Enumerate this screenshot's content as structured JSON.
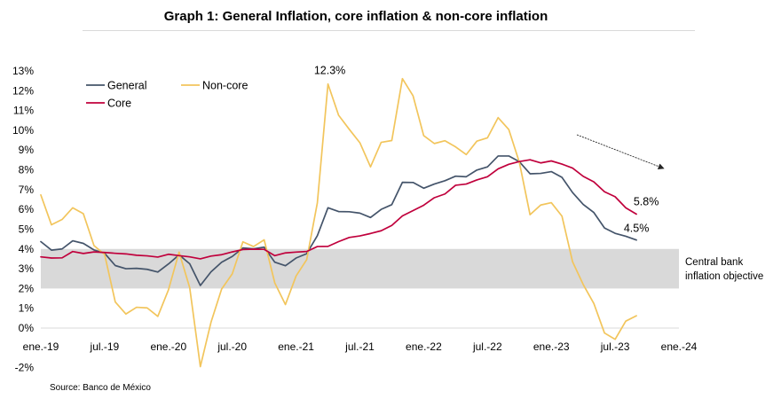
{
  "chart_data": {
    "type": "line",
    "title": "Graph 1: General Inflation, core inflation & non-core inflation",
    "source": "Source: Banco de México",
    "xlabel": "",
    "ylabel": "",
    "grid": false,
    "legend": "top-left",
    "x": [
      "2019-01",
      "2019-02",
      "2019-03",
      "2019-04",
      "2019-05",
      "2019-06",
      "2019-07",
      "2019-08",
      "2019-09",
      "2019-10",
      "2019-11",
      "2019-12",
      "2020-01",
      "2020-02",
      "2020-03",
      "2020-04",
      "2020-05",
      "2020-06",
      "2020-07",
      "2020-08",
      "2020-09",
      "2020-10",
      "2020-11",
      "2020-12",
      "2021-01",
      "2021-02",
      "2021-03",
      "2021-04",
      "2021-05",
      "2021-06",
      "2021-07",
      "2021-08",
      "2021-09",
      "2021-10",
      "2021-11",
      "2021-12",
      "2022-01",
      "2022-02",
      "2022-03",
      "2022-04",
      "2022-05",
      "2022-06",
      "2022-07",
      "2022-08",
      "2022-09",
      "2022-10",
      "2022-11",
      "2022-12",
      "2023-01",
      "2023-02",
      "2023-03",
      "2023-04",
      "2023-05",
      "2023-06",
      "2023-07",
      "2023-08",
      "2023-09"
    ],
    "xlim": [
      "2019-01",
      "2024-01"
    ],
    "x_ticks": {
      "values": [
        "2019-01",
        "2019-07",
        "2020-01",
        "2020-07",
        "2021-01",
        "2021-07",
        "2022-01",
        "2022-07",
        "2023-01",
        "2023-07",
        "2024-01"
      ],
      "labels": [
        "ene.-19",
        "jul.-19",
        "ene.-20",
        "jul.-20",
        "ene.-21",
        "jul.-21",
        "ene.-22",
        "jul.-22",
        "ene.-23",
        "jul.-23",
        "ene.-24"
      ]
    },
    "ylim": [
      -2,
      13
    ],
    "y_ticks": {
      "values": [
        13,
        12,
        11,
        10,
        9,
        8,
        7,
        6,
        5,
        4,
        3,
        2,
        1,
        0,
        -2
      ],
      "labels": [
        "13%",
        "12%",
        "11%",
        "10%",
        "9%",
        "8%",
        "7%",
        "6%",
        "5%",
        "4%",
        "3%",
        "2%",
        "1%",
        "0%",
        "-2%"
      ]
    },
    "series": [
      {
        "name": "General",
        "color": "#44546a",
        "values": [
          4.37,
          3.94,
          4.0,
          4.41,
          4.28,
          3.95,
          3.78,
          3.16,
          3.0,
          3.02,
          2.97,
          2.83,
          3.24,
          3.7,
          3.25,
          2.15,
          2.84,
          3.33,
          3.62,
          4.05,
          4.01,
          4.09,
          3.33,
          3.15,
          3.54,
          3.76,
          4.67,
          6.08,
          5.89,
          5.88,
          5.81,
          5.59,
          6.0,
          6.24,
          7.37,
          7.36,
          7.07,
          7.28,
          7.45,
          7.68,
          7.65,
          7.99,
          8.15,
          8.7,
          8.7,
          8.41,
          7.8,
          7.82,
          7.91,
          7.62,
          6.85,
          6.25,
          5.84,
          5.06,
          4.79,
          4.64,
          4.45
        ]
      },
      {
        "name": "Non-core",
        "color": "#f2c55c",
        "values": [
          6.73,
          5.22,
          5.49,
          6.08,
          5.78,
          4.17,
          3.72,
          1.32,
          0.71,
          1.05,
          1.02,
          0.59,
          1.93,
          3.84,
          2.04,
          -1.95,
          0.29,
          1.97,
          2.74,
          4.36,
          4.12,
          4.46,
          2.28,
          1.19,
          2.63,
          3.46,
          6.33,
          12.34,
          10.76,
          10.05,
          9.37,
          8.15,
          9.39,
          9.48,
          12.61,
          11.74,
          9.73,
          9.33,
          9.47,
          9.16,
          8.77,
          9.45,
          9.62,
          10.64,
          10.04,
          8.37,
          5.73,
          6.22,
          6.34,
          5.66,
          3.35,
          2.2,
          1.24,
          -0.25,
          -0.57,
          0.35,
          0.62
        ]
      },
      {
        "name": "Core",
        "color": "#c0003c",
        "values": [
          3.6,
          3.54,
          3.55,
          3.87,
          3.77,
          3.85,
          3.82,
          3.78,
          3.75,
          3.68,
          3.65,
          3.59,
          3.73,
          3.66,
          3.6,
          3.5,
          3.64,
          3.71,
          3.85,
          3.97,
          3.99,
          3.98,
          3.66,
          3.8,
          3.84,
          3.87,
          4.12,
          4.13,
          4.37,
          4.58,
          4.66,
          4.78,
          4.92,
          5.19,
          5.67,
          5.94,
          6.21,
          6.59,
          6.78,
          7.22,
          7.28,
          7.49,
          7.65,
          8.05,
          8.28,
          8.42,
          8.51,
          8.35,
          8.45,
          8.29,
          8.09,
          7.67,
          7.39,
          6.89,
          6.64,
          6.08,
          5.76
        ]
      }
    ],
    "target_band": {
      "low": 2,
      "high": 4,
      "color": "#d9d9d9",
      "label_lines": [
        "Central bank",
        "inflation objective"
      ]
    },
    "annotations": [
      {
        "series": "Non-core",
        "x": "2021-04",
        "label": "12.3%"
      },
      {
        "series": "Core",
        "x": "2023-09",
        "label": "5.8%"
      },
      {
        "series": "General",
        "x": "2023-09",
        "label": "4.5%"
      }
    ]
  }
}
